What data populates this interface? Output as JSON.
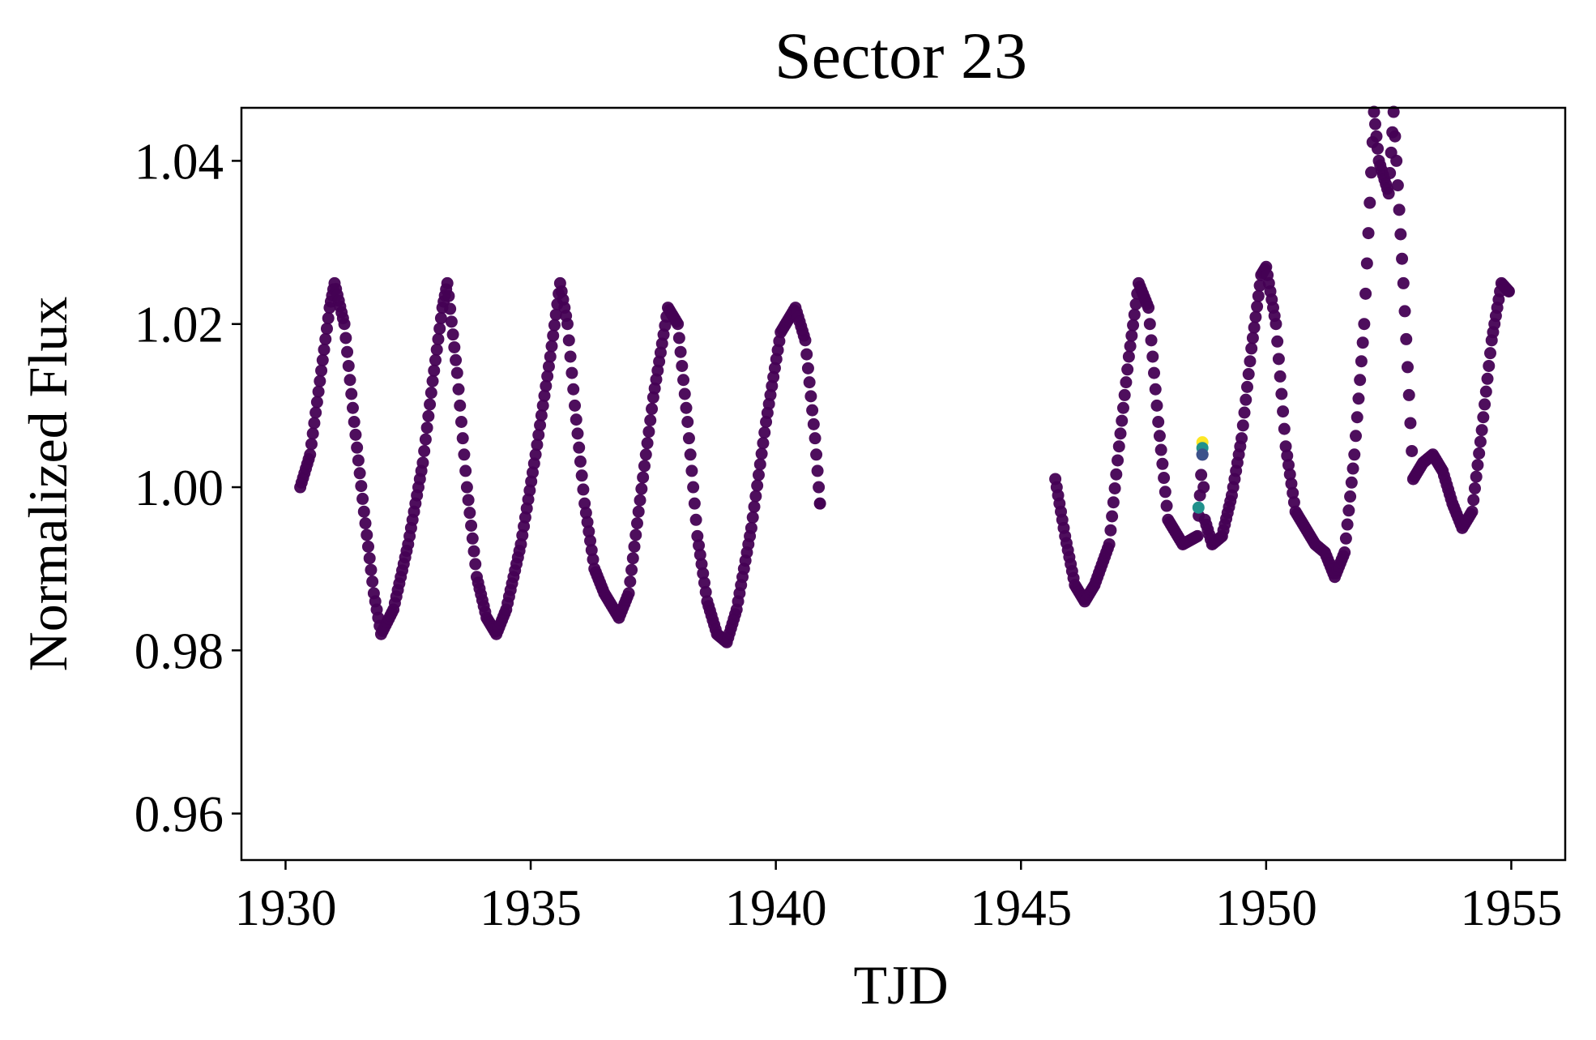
{
  "chart_data": {
    "type": "scatter",
    "title": "Sector 23",
    "xlabel": "TJD",
    "ylabel": "Normalized Flux",
    "xlim": [
      1929.1,
      1956.1
    ],
    "ylim": [
      0.9543,
      1.0465
    ],
    "xticks": [
      {
        "value": 1930,
        "label": "1930"
      },
      {
        "value": 1935,
        "label": "1935"
      },
      {
        "value": 1940,
        "label": "1940"
      },
      {
        "value": 1945,
        "label": "1945"
      },
      {
        "value": 1950,
        "label": "1950"
      },
      {
        "value": 1955,
        "label": "1955"
      }
    ],
    "yticks": [
      {
        "value": 0.96,
        "label": "0.96"
      },
      {
        "value": 0.98,
        "label": "0.98"
      },
      {
        "value": 1.0,
        "label": "1.00"
      },
      {
        "value": 1.02,
        "label": "1.02"
      },
      {
        "value": 1.04,
        "label": "1.04"
      }
    ],
    "grid": false,
    "point_color": "#440154",
    "outlier_colors": [
      "#fde725",
      "#21918c",
      "#3b528b"
    ],
    "series": [
      {
        "x": [
          1930.3,
          1930.5,
          1930.7,
          1930.9,
          1931.0,
          1931.2,
          1931.4,
          1931.6,
          1931.8,
          1931.95,
          1932.2,
          1932.5,
          1932.8,
          1933.0,
          1933.2,
          1933.3,
          1933.5,
          1933.7,
          1933.9,
          1934.1,
          1934.3,
          1934.5,
          1934.8,
          1935.1,
          1935.4,
          1935.6,
          1935.75,
          1935.9,
          1936.1,
          1936.3,
          1936.5,
          1936.8,
          1937.0,
          1937.2,
          1937.5,
          1937.8,
          1938.0,
          1938.2,
          1938.4,
          1938.6,
          1938.8,
          1939.0,
          1939.2,
          1939.5,
          1939.8,
          1940.1,
          1940.4,
          1940.6,
          1940.8,
          1940.9
        ],
        "y": [
          1.0,
          1.004,
          1.013,
          1.022,
          1.025,
          1.02,
          1.008,
          0.997,
          0.987,
          0.982,
          0.985,
          0.993,
          1.003,
          1.013,
          1.022,
          1.025,
          1.014,
          1.0,
          0.989,
          0.984,
          0.982,
          0.985,
          0.993,
          1.004,
          1.016,
          1.025,
          1.02,
          1.01,
          0.998,
          0.99,
          0.987,
          0.984,
          0.987,
          0.997,
          1.011,
          1.022,
          1.02,
          1.008,
          0.994,
          0.986,
          0.982,
          0.981,
          0.985,
          0.995,
          1.008,
          1.019,
          1.022,
          1.018,
          1.006,
          0.998
        ]
      },
      {
        "x": [
          1945.7,
          1945.9,
          1946.1,
          1946.3,
          1946.5,
          1946.8,
          1947.0,
          1947.2,
          1947.4,
          1947.6,
          1947.8,
          1948.0,
          1948.3,
          1948.6,
          1948.7,
          1948.75,
          1948.9,
          1949.1,
          1949.3,
          1949.5,
          1949.7,
          1949.9,
          1950.0,
          1950.2,
          1950.4,
          1950.6,
          1950.8,
          1951.0,
          1951.2,
          1951.4,
          1951.6,
          1951.8,
          1952.0,
          1952.2,
          1952.3,
          1952.5,
          1952.6,
          1952.8,
          1953.0,
          1953.2,
          1953.4,
          1953.6,
          1953.8,
          1954.0,
          1954.2,
          1954.4,
          1954.6,
          1954.8,
          1954.95
        ],
        "y": [
          1.001,
          0.994,
          0.988,
          0.986,
          0.988,
          0.993,
          1.005,
          1.016,
          1.025,
          1.022,
          1.008,
          0.996,
          0.993,
          0.994,
          1.004,
          0.996,
          0.993,
          0.994,
          0.999,
          1.006,
          1.017,
          1.026,
          1.027,
          1.02,
          1.005,
          0.997,
          0.995,
          0.993,
          0.992,
          0.989,
          0.992,
          1.004,
          1.02,
          1.046,
          1.04,
          1.036,
          1.046,
          1.025,
          1.001,
          1.003,
          1.004,
          1.002,
          0.998,
          0.995,
          0.997,
          1.007,
          1.018,
          1.025,
          1.024
        ]
      }
    ]
  }
}
